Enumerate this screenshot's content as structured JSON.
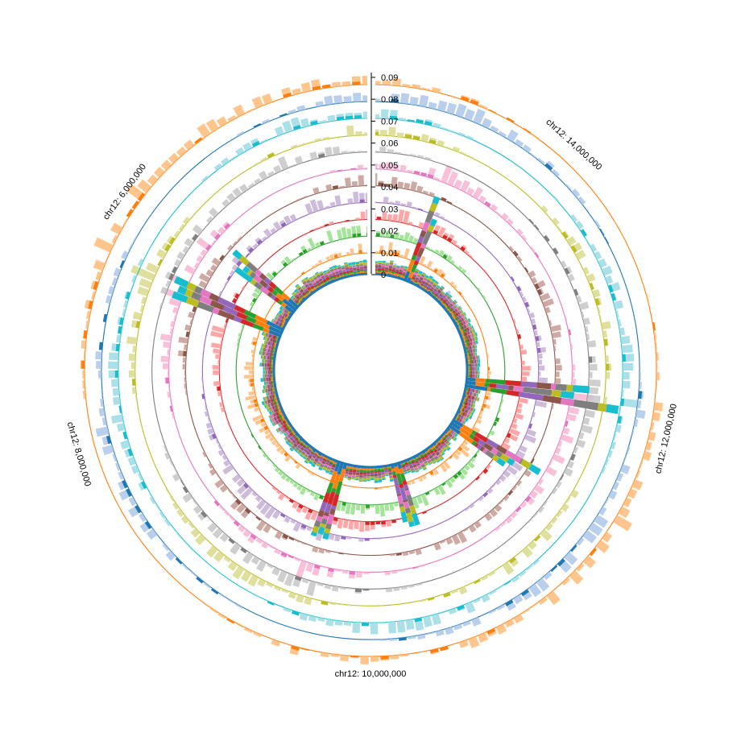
{
  "chart_data": {
    "type": "radial-stacked-bar",
    "title": "",
    "genome_labels": [
      {
        "text": "chr12: 6,000,000",
        "angle_deg": -54
      },
      {
        "text": "chr12: 14,000,000",
        "angle_deg": 42
      },
      {
        "text": "chr12: 12,000,000",
        "angle_deg": 103
      },
      {
        "text": "chr12: 10,000,000",
        "angle_deg": 180
      },
      {
        "text": "chr12: 8,000,000",
        "angle_deg": 254
      }
    ],
    "y_ticks": [
      "0",
      "0.01",
      "0.02",
      "0.03",
      "0.04",
      "0.05",
      "0.06",
      "0.07",
      "0.08",
      "0.09"
    ],
    "ylim": [
      0,
      0.09
    ],
    "bin_count": 180,
    "gap_angle_deg": 0.35,
    "seed": 12,
    "series": [
      {
        "name": "",
        "color": "#1f77b4",
        "scale": 0.045,
        "freq": 2,
        "phase": 0.3
      },
      {
        "name": "",
        "color": "#ff7f0e",
        "scale": 0.04,
        "freq": 3,
        "phase": 1.1
      },
      {
        "name": "",
        "color": "#2ca02c",
        "scale": 0.036,
        "freq": 2,
        "phase": 2.0
      },
      {
        "name": "",
        "color": "#d62728",
        "scale": 0.034,
        "freq": 4,
        "phase": 0.7
      },
      {
        "name": "",
        "color": "#9467bd",
        "scale": 0.032,
        "freq": 3,
        "phase": 2.6
      },
      {
        "name": "",
        "color": "#8c564b",
        "scale": 0.03,
        "freq": 5,
        "phase": 1.5
      },
      {
        "name": "",
        "color": "#e377c2",
        "scale": 0.028,
        "freq": 4,
        "phase": 0.2
      },
      {
        "name": "",
        "color": "#7f7f7f",
        "scale": 0.026,
        "freq": 3,
        "phase": 3.1
      },
      {
        "name": "",
        "color": "#bcbd22",
        "scale": 0.024,
        "freq": 5,
        "phase": 1.9
      },
      {
        "name": "",
        "color": "#17becf",
        "scale": 0.022,
        "freq": 4,
        "phase": 2.3
      }
    ],
    "tracks": [
      {
        "color": "#1f77b4",
        "fill": "#aec7e8",
        "scale": 0.045,
        "freq": 2,
        "phase": 0.3
      },
      {
        "color": "#ff7f0e",
        "fill": "#ffbb78",
        "scale": 0.04,
        "freq": 3,
        "phase": 1.1
      },
      {
        "color": "#2ca02c",
        "fill": "#98df8a",
        "scale": 0.036,
        "freq": 2,
        "phase": 2.0
      },
      {
        "color": "#d62728",
        "fill": "#ff9896",
        "scale": 0.034,
        "freq": 4,
        "phase": 0.7
      },
      {
        "color": "#9467bd",
        "fill": "#c5b0d5",
        "scale": 0.032,
        "freq": 3,
        "phase": 2.6
      },
      {
        "color": "#8c564b",
        "fill": "#c49c94",
        "scale": 0.03,
        "freq": 5,
        "phase": 1.5
      },
      {
        "color": "#e377c2",
        "fill": "#f7b6d2",
        "scale": 0.028,
        "freq": 4,
        "phase": 0.2
      },
      {
        "color": "#7f7f7f",
        "fill": "#c7c7c7",
        "scale": 0.026,
        "freq": 3,
        "phase": 3.1
      },
      {
        "color": "#bcbd22",
        "fill": "#dbdb8d",
        "scale": 0.024,
        "freq": 5,
        "phase": 1.9
      },
      {
        "color": "#17becf",
        "fill": "#9edae5",
        "scale": 0.022,
        "freq": 4,
        "phase": 2.3
      },
      {
        "color": "#1f77b4",
        "fill": "#aec7e8",
        "scale": 0.02,
        "freq": 3,
        "phase": 0.9
      },
      {
        "color": "#ff7f0e",
        "fill": "#ffbb78",
        "scale": 0.018,
        "freq": 2,
        "phase": 2.8
      }
    ],
    "spikes": [
      {
        "angle_deg": -68,
        "width_deg": 3.2,
        "boost": 2.2
      },
      {
        "angle_deg": -52,
        "width_deg": 3.0,
        "boost": 1.6
      },
      {
        "angle_deg": 21,
        "width_deg": 2.0,
        "boost": 1.4
      },
      {
        "angle_deg": 96,
        "width_deg": 3.0,
        "boost": 2.3
      },
      {
        "angle_deg": 122,
        "width_deg": 3.0,
        "boost": 1.7
      },
      {
        "angle_deg": 164,
        "width_deg": 2.2,
        "boost": 1.3
      },
      {
        "angle_deg": 196,
        "width_deg": 2.4,
        "boost": 1.5
      }
    ]
  }
}
